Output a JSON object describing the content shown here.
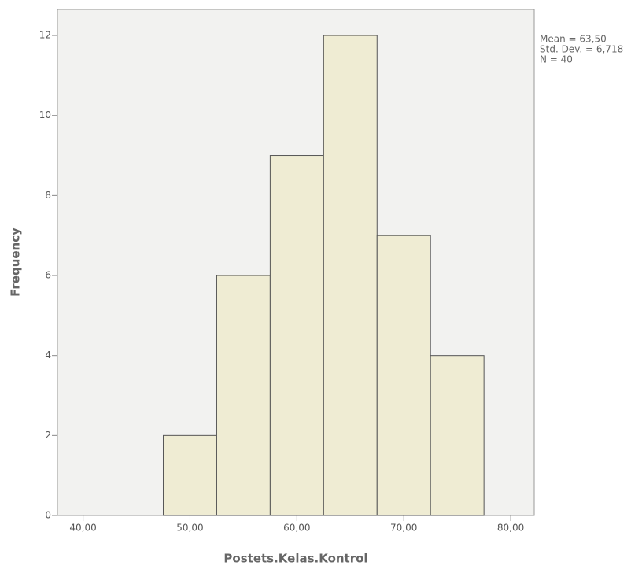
{
  "chart_data": {
    "type": "histogram",
    "bins": [
      47.5,
      52.5,
      57.5,
      62.5,
      67.5,
      72.5,
      77.5
    ],
    "values": [
      2,
      6,
      9,
      12,
      7,
      4
    ],
    "color": "#efecd3",
    "edge_color": "#555555",
    "xlim": [
      37.6,
      82.2
    ],
    "xticks": [
      {
        "value": 40,
        "label": "40,00"
      },
      {
        "value": 50,
        "label": "50,00"
      },
      {
        "value": 60,
        "label": "60,00"
      },
      {
        "value": 70,
        "label": "70,00"
      },
      {
        "value": 80,
        "label": "80,00"
      }
    ],
    "ylim": [
      0,
      12.65
    ],
    "yticks": [
      0,
      2,
      4,
      6,
      8,
      10,
      12
    ],
    "x_label": "Postets.Kelas.Kontrol",
    "y_label": "Frequency",
    "annotations": [
      "Mean = 63,50",
      "Std. Dev. = 6,718",
      "N = 40"
    ]
  }
}
